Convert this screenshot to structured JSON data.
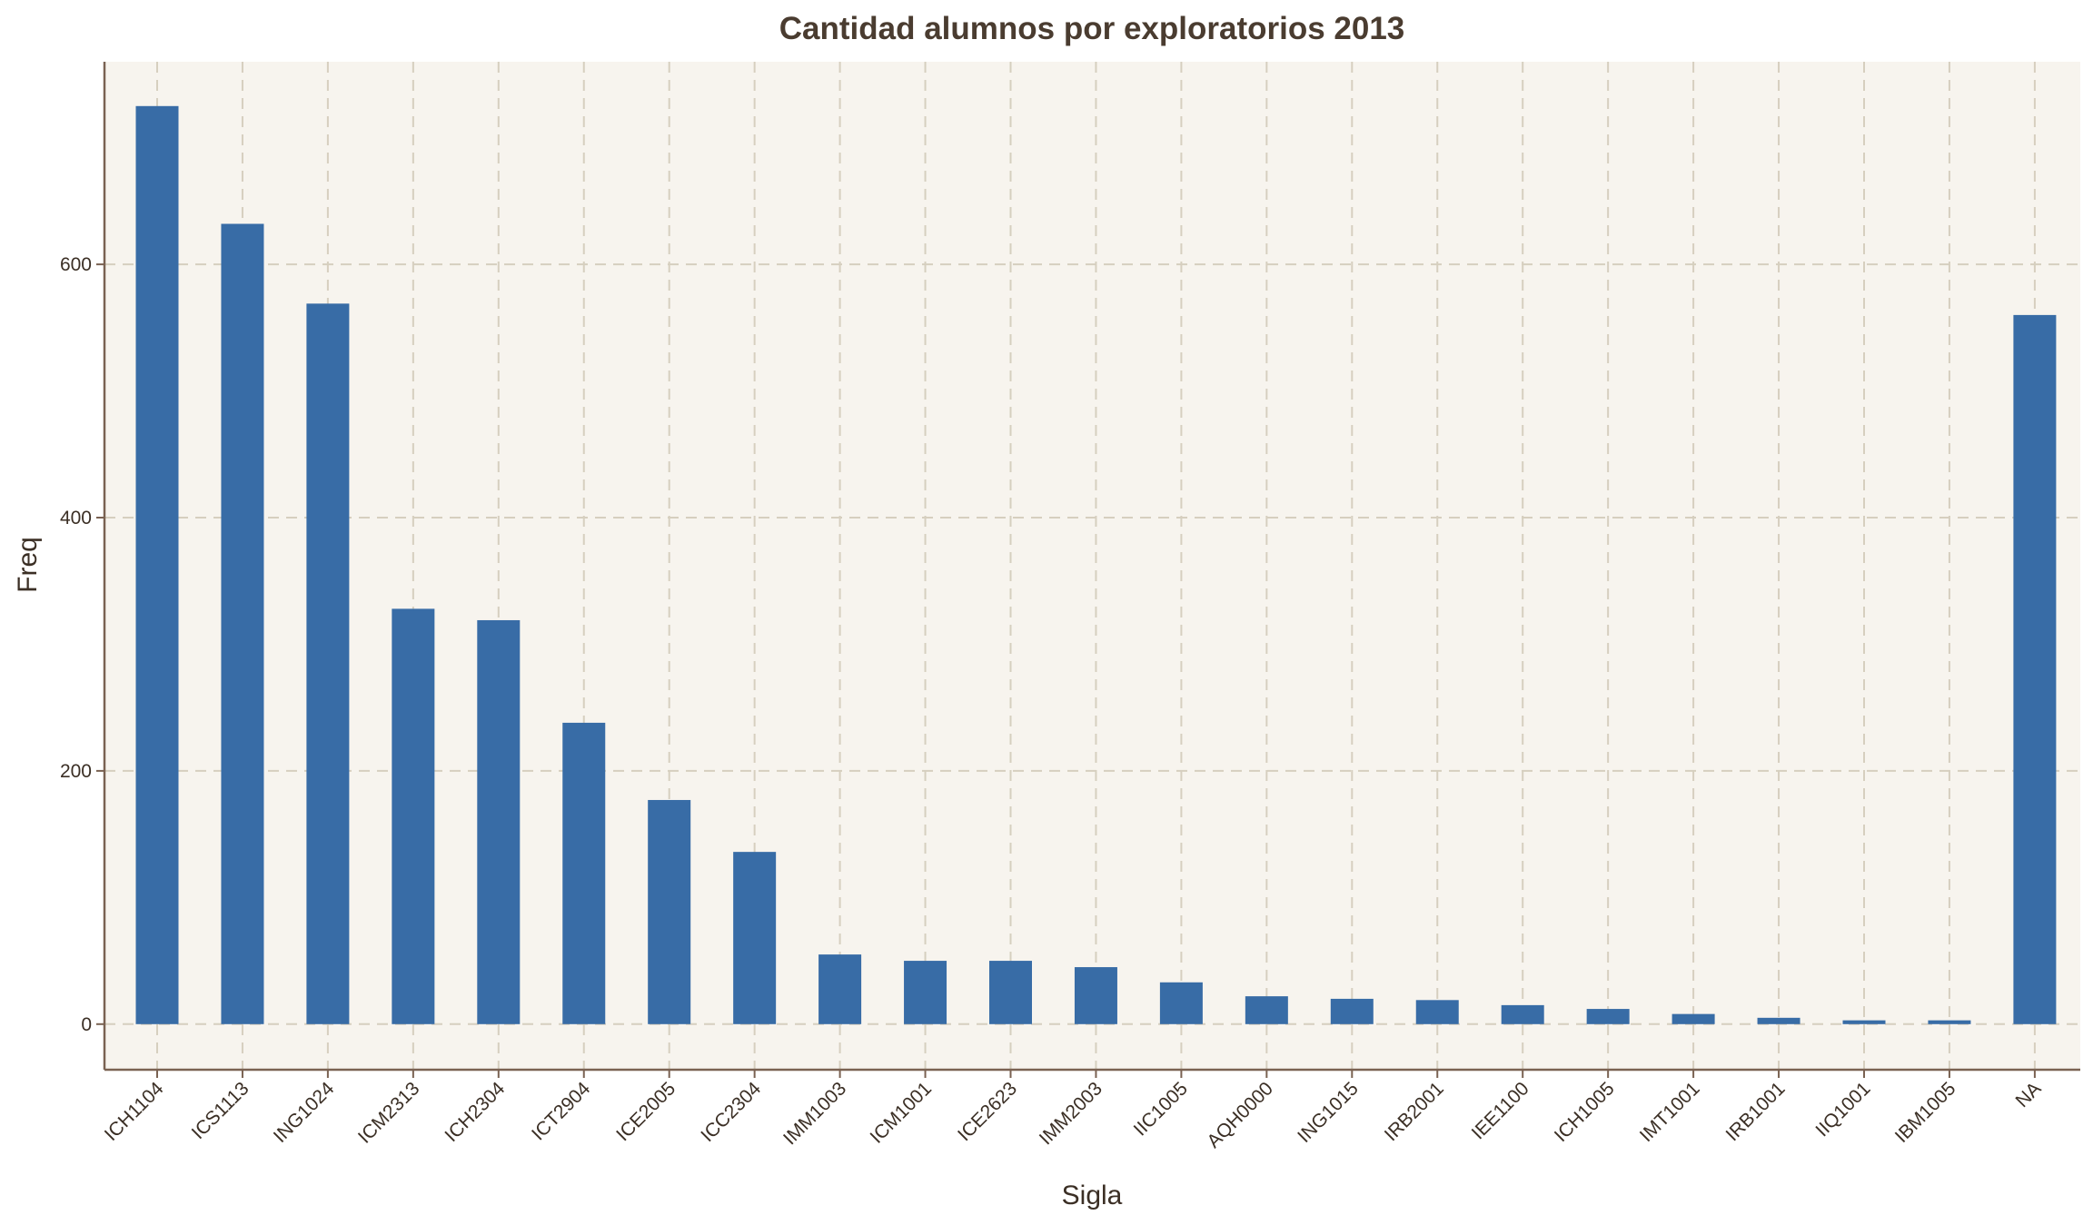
{
  "chart_data": {
    "type": "bar",
    "title": "Cantidad alumnos por exploratorios 2013",
    "xlabel": "Sigla",
    "ylabel": "Freq",
    "categories": [
      "ICH1104",
      "ICS1113",
      "ING1024",
      "ICM2313",
      "ICH2304",
      "ICT2904",
      "ICE2005",
      "ICC2304",
      "IMM1003",
      "ICM1001",
      "ICE2623",
      "IMM2003",
      "IIC1005",
      "AQH0000",
      "ING1015",
      "IRB2001",
      "IEE1100",
      "ICH1005",
      "IMT1001",
      "IRB1001",
      "IIQ1001",
      "IBM1005",
      "NA"
    ],
    "values": [
      725,
      632,
      569,
      328,
      319,
      238,
      177,
      136,
      55,
      50,
      50,
      45,
      33,
      22,
      20,
      19,
      15,
      12,
      8,
      5,
      3,
      3,
      560
    ],
    "ylim": [
      -36,
      760
    ],
    "yticks": [
      0,
      200,
      400,
      600
    ],
    "grid": true,
    "legend": "none",
    "colors": {
      "bar": "#386ca6",
      "plot_background": "#f7f4ee",
      "grid": "#d6cfbf",
      "axis": "#7a6252",
      "title": "#4a3c30"
    }
  }
}
